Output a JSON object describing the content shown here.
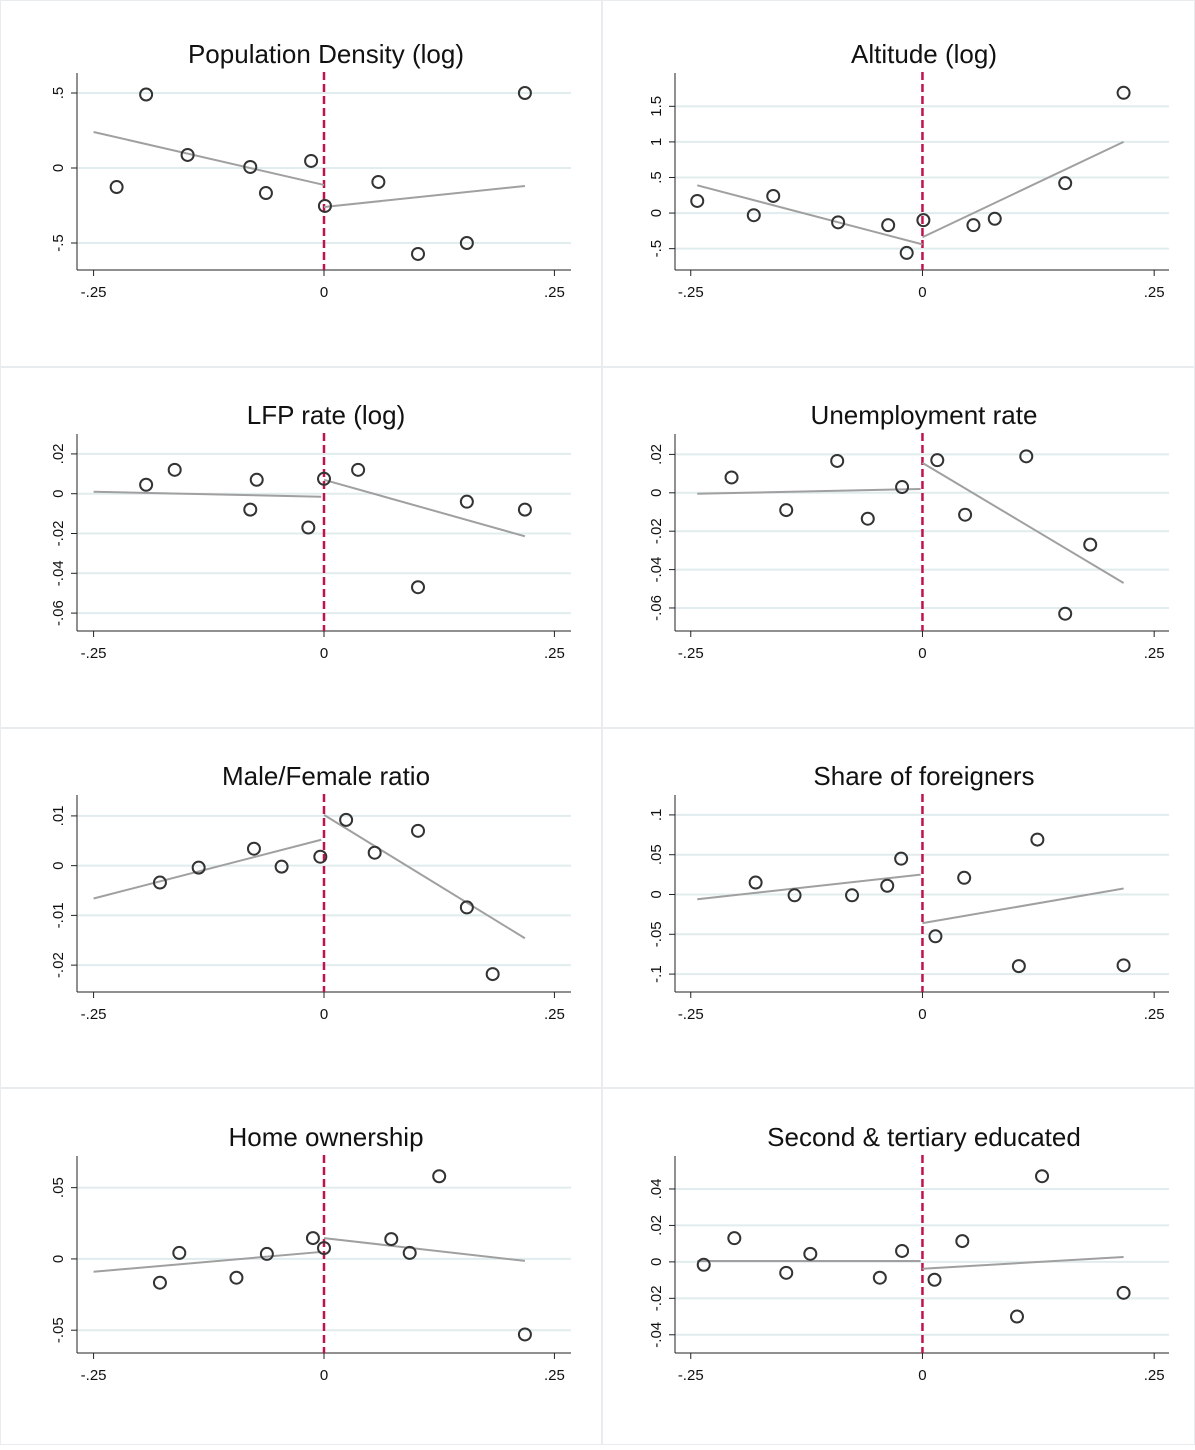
{
  "chart_data": [
    {
      "type": "scatter",
      "title": "Population Density (log)",
      "x": [
        -0.225,
        -0.193,
        -0.148,
        -0.08,
        -0.063,
        -0.014,
        0.001,
        0.059,
        0.102,
        0.155,
        0.218
      ],
      "values": [
        -0.127,
        0.49,
        0.087,
        0.007,
        -0.167,
        0.047,
        -0.253,
        -0.093,
        -0.573,
        -0.5,
        0.5
      ],
      "fit": [
        {
          "x": [
            -0.25,
            0
          ],
          "values": [
            0.24,
            -0.113
          ]
        },
        {
          "x": [
            0,
            0.218
          ],
          "values": [
            -0.26,
            -0.12
          ]
        }
      ],
      "cutoff": 0,
      "marker_color": "#333333",
      "fit_color": "#a0a0a0",
      "cutoff_color": "#c0134b",
      "xlim": [
        -0.268,
        0.268
      ],
      "ylim": [
        -0.68,
        0.62
      ],
      "xticks": [
        {
          "value": -0.25,
          "label": "-.25"
        },
        0,
        {
          "value": 0.25,
          "label": ".25"
        }
      ],
      "yticks": [
        {
          "value": -0.5,
          "label": "-.5"
        },
        0,
        {
          "value": 0.5,
          "label": ".5"
        }
      ],
      "grid": true
    },
    {
      "type": "scatter",
      "title": "Altitude (log)",
      "x": [
        -0.243,
        -0.182,
        -0.161,
        -0.091,
        -0.037,
        -0.017,
        0.001,
        0.055,
        0.078,
        0.154,
        0.217
      ],
      "values": [
        0.17,
        -0.03,
        0.24,
        -0.13,
        -0.17,
        -0.56,
        -0.1,
        -0.17,
        -0.08,
        0.42,
        1.69
      ],
      "fit": [
        {
          "x": [
            -0.243,
            0
          ],
          "values": [
            0.39,
            -0.44
          ]
        },
        {
          "x": [
            0,
            0.217
          ],
          "values": [
            -0.34,
            1.0
          ]
        }
      ],
      "cutoff": 0,
      "marker_color": "#333333",
      "fit_color": "#a0a0a0",
      "cutoff_color": "#c0134b",
      "xlim": [
        -0.267,
        0.266
      ],
      "ylim": [
        -0.8,
        1.94
      ],
      "xticks": [
        {
          "value": -0.25,
          "label": "-.25"
        },
        0,
        {
          "value": 0.25,
          "label": ".25"
        }
      ],
      "yticks": [
        {
          "value": -0.5,
          "label": "-.5"
        },
        0,
        {
          "value": 0.5,
          "label": ".5"
        },
        1,
        1.5
      ],
      "grid": true
    },
    {
      "type": "scatter",
      "title": "LFP rate (log)",
      "x": [
        -0.193,
        -0.162,
        -0.08,
        -0.073,
        -0.017,
        0.0,
        0.037,
        0.102,
        0.155,
        0.218
      ],
      "values": [
        0.0045,
        0.012,
        -0.008,
        0.007,
        -0.017,
        0.0075,
        0.012,
        -0.047,
        -0.004,
        -0.008
      ],
      "fit": [
        {
          "x": [
            -0.25,
            -0.003
          ],
          "values": [
            0.001,
            -0.0015
          ]
        },
        {
          "x": [
            0,
            0.218
          ],
          "values": [
            0.007,
            -0.0214
          ]
        }
      ],
      "cutoff": 0,
      "marker_color": "#333333",
      "fit_color": "#a0a0a0",
      "cutoff_color": "#c0134b",
      "xlim": [
        -0.268,
        0.268
      ],
      "ylim": [
        -0.069,
        0.029
      ],
      "xticks": [
        {
          "value": -0.25,
          "label": "-.25"
        },
        0,
        {
          "value": 0.25,
          "label": ".25"
        }
      ],
      "yticks": [
        {
          "value": -0.06,
          "label": "-.06"
        },
        {
          "value": -0.04,
          "label": "-.04"
        },
        {
          "value": -0.02,
          "label": "-.02"
        },
        0,
        {
          "value": 0.02,
          "label": ".02"
        }
      ],
      "grid": true
    },
    {
      "type": "scatter",
      "title": "Unemployment rate",
      "x": [
        -0.206,
        -0.147,
        -0.092,
        -0.059,
        -0.022,
        0.016,
        0.046,
        0.112,
        0.181,
        0.154
      ],
      "values": [
        0.008,
        -0.009,
        0.0166,
        -0.0135,
        0.003,
        0.017,
        -0.0114,
        0.019,
        -0.027,
        -0.063
      ],
      "fit": [
        {
          "x": [
            -0.243,
            -0.002
          ],
          "values": [
            -0.0005,
            0.002
          ]
        },
        {
          "x": [
            0,
            0.217
          ],
          "values": [
            0.0156,
            -0.047
          ]
        }
      ],
      "cutoff": 0,
      "marker_color": "#333333",
      "fit_color": "#a0a0a0",
      "cutoff_color": "#c0134b",
      "xlim": [
        -0.267,
        0.266
      ],
      "ylim": [
        -0.072,
        0.0296
      ],
      "xticks": [
        {
          "value": -0.25,
          "label": "-.25"
        },
        0,
        {
          "value": 0.25,
          "label": ".25"
        }
      ],
      "yticks": [
        {
          "value": -0.06,
          "label": "-.06"
        },
        {
          "value": -0.04,
          "label": "-.04"
        },
        {
          "value": -0.02,
          "label": "-.02"
        },
        0,
        {
          "value": 0.02,
          "label": ".02"
        }
      ],
      "grid": true
    },
    {
      "type": "scatter",
      "title": "Male/Female ratio",
      "x": [
        -0.178,
        -0.136,
        -0.076,
        -0.046,
        -0.004,
        0.024,
        0.055,
        0.102,
        0.155,
        0.183
      ],
      "values": [
        -0.0034,
        -0.0004,
        0.0034,
        -0.0002,
        0.0018,
        0.0092,
        0.0026,
        0.007,
        -0.0084,
        -0.0218
      ],
      "fit": [
        {
          "x": [
            -0.25,
            -0.003
          ],
          "values": [
            -0.0066,
            0.0052
          ]
        },
        {
          "x": [
            0,
            0.218
          ],
          "values": [
            0.0102,
            -0.0146
          ]
        }
      ],
      "cutoff": 0,
      "marker_color": "#333333",
      "fit_color": "#a0a0a0",
      "cutoff_color": "#c0134b",
      "xlim": [
        -0.268,
        0.268
      ],
      "ylim": [
        -0.0254,
        0.0138
      ],
      "xticks": [
        {
          "value": -0.25,
          "label": "-.25"
        },
        0,
        {
          "value": 0.25,
          "label": ".25"
        }
      ],
      "yticks": [
        {
          "value": -0.02,
          "label": "-.02"
        },
        {
          "value": -0.01,
          "label": "-.01"
        },
        0,
        {
          "value": 0.01,
          "label": ".01"
        }
      ],
      "grid": true
    },
    {
      "type": "scatter",
      "title": "Share of foreigners",
      "x": [
        -0.18,
        -0.138,
        -0.076,
        -0.038,
        -0.023,
        0.014,
        0.045,
        0.104,
        0.124,
        0.217
      ],
      "values": [
        0.015,
        -0.001,
        -0.001,
        0.011,
        0.045,
        -0.0525,
        0.021,
        -0.09,
        0.069,
        -0.089
      ],
      "fit": [
        {
          "x": [
            -0.243,
            -0.002
          ],
          "values": [
            -0.006,
            0.025
          ]
        },
        {
          "x": [
            0,
            0.217
          ],
          "values": [
            -0.036,
            0.0075
          ]
        }
      ],
      "cutoff": 0,
      "marker_color": "#333333",
      "fit_color": "#a0a0a0",
      "cutoff_color": "#c0134b",
      "xlim": [
        -0.267,
        0.266
      ],
      "ylim": [
        -0.1225,
        0.1225
      ],
      "xticks": [
        {
          "value": -0.25,
          "label": "-.25"
        },
        0,
        {
          "value": 0.25,
          "label": ".25"
        }
      ],
      "yticks": [
        {
          "value": -0.1,
          "label": "-.1"
        },
        {
          "value": -0.05,
          "label": "-.05"
        },
        0,
        {
          "value": 0.05,
          "label": ".05"
        },
        {
          "value": 0.1,
          "label": ".1"
        }
      ],
      "grid": true
    },
    {
      "type": "scatter",
      "title": "Home ownership",
      "x": [
        -0.178,
        -0.157,
        -0.095,
        -0.062,
        -0.012,
        0.0,
        0.073,
        0.093,
        0.125,
        0.218
      ],
      "values": [
        -0.0167,
        0.0042,
        -0.0132,
        0.0035,
        0.0146,
        0.0076,
        0.0139,
        0.0042,
        0.058,
        -0.053
      ],
      "fit": [
        {
          "x": [
            -0.25,
            -0.003
          ],
          "values": [
            -0.009,
            0.0049
          ]
        },
        {
          "x": [
            0,
            0.218
          ],
          "values": [
            0.0146,
            -0.0014
          ]
        }
      ],
      "cutoff": 0,
      "marker_color": "#333333",
      "fit_color": "#a0a0a0",
      "cutoff_color": "#c0134b",
      "xlim": [
        -0.268,
        0.268
      ],
      "ylim": [
        -0.066,
        0.0708
      ],
      "xticks": [
        {
          "value": -0.25,
          "label": "-.25"
        },
        0,
        {
          "value": 0.25,
          "label": ".25"
        }
      ],
      "yticks": [
        {
          "value": -0.05,
          "label": "-.05"
        },
        0,
        {
          "value": 0.05,
          "label": ".05"
        }
      ],
      "grid": true
    },
    {
      "type": "scatter",
      "title": "Second & tertiary educated",
      "x": [
        -0.236,
        -0.203,
        -0.147,
        -0.121,
        -0.046,
        -0.022,
        0.013,
        0.043,
        0.102,
        0.129,
        0.217
      ],
      "values": [
        -0.0016,
        0.013,
        -0.006,
        0.0044,
        -0.0087,
        0.006,
        -0.0098,
        0.0114,
        -0.03,
        0.047,
        -0.017
      ],
      "fit": [
        {
          "x": [
            -0.243,
            -0.002
          ],
          "values": [
            0.0005,
            0.0005
          ]
        },
        {
          "x": [
            0,
            0.217
          ],
          "values": [
            -0.0038,
            0.0027
          ]
        }
      ],
      "cutoff": 0,
      "marker_color": "#333333",
      "fit_color": "#a0a0a0",
      "cutoff_color": "#c0134b",
      "xlim": [
        -0.267,
        0.266
      ],
      "ylim": [
        -0.05,
        0.057
      ],
      "xticks": [
        {
          "value": -0.25,
          "label": "-.25"
        },
        0,
        {
          "value": 0.25,
          "label": ".25"
        }
      ],
      "yticks": [
        {
          "value": -0.04,
          "label": "-.04"
        },
        {
          "value": -0.02,
          "label": "-.02"
        },
        0,
        {
          "value": 0.02,
          "label": ".02"
        },
        {
          "value": 0.04,
          "label": ".04"
        }
      ],
      "grid": true
    }
  ]
}
